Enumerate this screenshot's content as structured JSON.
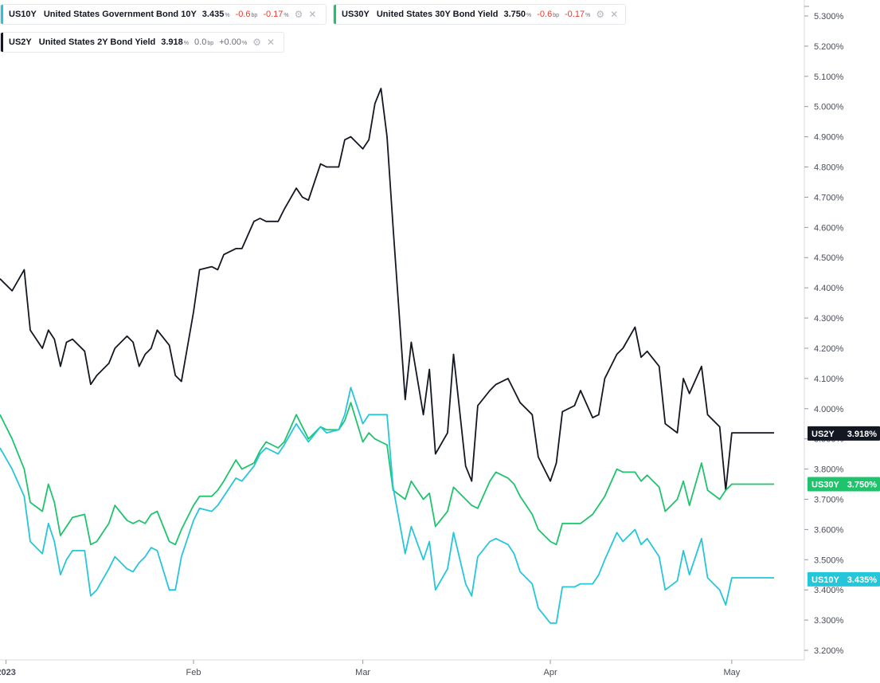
{
  "legends": [
    {
      "symbol": "US10Y",
      "name": "United States Government Bond 10Y",
      "value": "3.435",
      "unit": "%",
      "change": "-0.6",
      "change_unit": "bp",
      "pct": "-0.17",
      "pct_unit": "%",
      "color": "#26c6da"
    },
    {
      "symbol": "US30Y",
      "name": "United States 30Y Bond Yield",
      "value": "3.750",
      "unit": "%",
      "change": "-0.6",
      "change_unit": "bp",
      "pct": "-0.17",
      "pct_unit": "%",
      "color": "#1ec46c"
    },
    {
      "symbol": "US2Y",
      "name": "United States 2Y Bond Yield",
      "value": "3.918",
      "unit": "%",
      "change": "0.0",
      "change_unit": "bp",
      "pct": "+0.00",
      "pct_unit": "%",
      "color": "#131722"
    }
  ],
  "chart_data": {
    "type": "line",
    "x_labels": [
      {
        "label": "2023",
        "day": 0
      },
      {
        "label": "Feb",
        "day": 31
      },
      {
        "label": "Mar",
        "day": 59
      },
      {
        "label": "Apr",
        "day": 90
      },
      {
        "label": "May",
        "day": 120
      }
    ],
    "y_ticks": [
      "5.300%",
      "5.200%",
      "5.100%",
      "5.000%",
      "4.900%",
      "4.800%",
      "4.700%",
      "4.600%",
      "4.500%",
      "4.400%",
      "4.300%",
      "4.200%",
      "4.100%",
      "4.000%",
      "3.900%",
      "3.800%",
      "3.700%",
      "3.600%",
      "3.500%",
      "3.400%",
      "3.300%",
      "3.200%"
    ],
    "ylim": [
      3.18,
      5.34
    ],
    "xlim": [
      -1,
      132
    ],
    "series": [
      {
        "name": "US2Y",
        "color": "#131722",
        "last": "3.918%",
        "x": [
          -1,
          1,
          3,
          4,
          6,
          7,
          8,
          9,
          10,
          11,
          13,
          14,
          15,
          17,
          18,
          20,
          21,
          22,
          23,
          24,
          25,
          27,
          28,
          29,
          31,
          32,
          34,
          35,
          36,
          38,
          39,
          41,
          42,
          43,
          45,
          46,
          48,
          49,
          50,
          52,
          53,
          55,
          56,
          57,
          59,
          60,
          61,
          62,
          63,
          64,
          66,
          67,
          69,
          70,
          71,
          73,
          74,
          76,
          77,
          78,
          80,
          81,
          83,
          84,
          85,
          87,
          88,
          90,
          91,
          92,
          94,
          95,
          97,
          98,
          99,
          101,
          102,
          104,
          105,
          106,
          108,
          109,
          111,
          112,
          113,
          115,
          116,
          118,
          119,
          120,
          122,
          123,
          125,
          126,
          127,
          129
        ],
        "y": [
          4.43,
          4.39,
          4.46,
          4.26,
          4.2,
          4.26,
          4.23,
          4.14,
          4.22,
          4.23,
          4.19,
          4.08,
          4.11,
          4.15,
          4.2,
          4.24,
          4.22,
          4.14,
          4.18,
          4.2,
          4.26,
          4.21,
          4.11,
          4.09,
          4.32,
          4.46,
          4.47,
          4.46,
          4.51,
          4.53,
          4.53,
          4.62,
          4.63,
          4.62,
          4.62,
          4.66,
          4.73,
          4.7,
          4.69,
          4.81,
          4.8,
          4.8,
          4.89,
          4.9,
          4.86,
          4.89,
          5.01,
          5.06,
          4.9,
          4.6,
          4.03,
          4.22,
          3.98,
          4.13,
          3.85,
          3.92,
          4.18,
          3.81,
          3.76,
          4.01,
          4.06,
          4.08,
          4.1,
          4.06,
          4.02,
          3.98,
          3.84,
          3.76,
          3.82,
          3.99,
          4.01,
          4.06,
          3.97,
          3.98,
          4.1,
          4.18,
          4.2,
          4.27,
          4.17,
          4.19,
          4.14,
          3.95,
          3.92,
          4.1,
          4.05,
          4.14,
          3.98,
          3.94,
          3.73,
          3.92,
          3.92,
          3.92,
          3.92,
          3.92,
          3.92,
          3.92
        ]
      },
      {
        "name": "US30Y",
        "color": "#1ec46c",
        "last": "3.750%",
        "x": [
          -1,
          1,
          3,
          4,
          6,
          7,
          8,
          9,
          10,
          11,
          13,
          14,
          15,
          17,
          18,
          20,
          21,
          22,
          23,
          24,
          25,
          27,
          28,
          29,
          31,
          32,
          34,
          35,
          36,
          38,
          39,
          41,
          42,
          43,
          45,
          46,
          48,
          49,
          50,
          52,
          53,
          55,
          56,
          57,
          59,
          60,
          61,
          62,
          63,
          64,
          66,
          67,
          69,
          70,
          71,
          73,
          74,
          76,
          77,
          78,
          80,
          81,
          83,
          84,
          85,
          87,
          88,
          90,
          91,
          92,
          94,
          95,
          97,
          98,
          99,
          101,
          102,
          104,
          105,
          106,
          108,
          109,
          111,
          112,
          113,
          115,
          116,
          118,
          119,
          120,
          122,
          123,
          125,
          126,
          127,
          129
        ],
        "y": [
          3.98,
          3.9,
          3.8,
          3.69,
          3.66,
          3.75,
          3.69,
          3.58,
          3.61,
          3.64,
          3.65,
          3.55,
          3.56,
          3.62,
          3.68,
          3.63,
          3.62,
          3.63,
          3.62,
          3.65,
          3.66,
          3.56,
          3.55,
          3.6,
          3.68,
          3.71,
          3.71,
          3.73,
          3.76,
          3.83,
          3.8,
          3.82,
          3.86,
          3.89,
          3.87,
          3.89,
          3.98,
          3.94,
          3.9,
          3.94,
          3.93,
          3.93,
          3.96,
          4.02,
          3.89,
          3.92,
          3.9,
          3.89,
          3.88,
          3.73,
          3.7,
          3.76,
          3.7,
          3.72,
          3.61,
          3.66,
          3.74,
          3.7,
          3.68,
          3.67,
          3.76,
          3.79,
          3.77,
          3.75,
          3.71,
          3.65,
          3.6,
          3.56,
          3.55,
          3.62,
          3.62,
          3.62,
          3.65,
          3.68,
          3.71,
          3.8,
          3.79,
          3.79,
          3.76,
          3.78,
          3.74,
          3.66,
          3.7,
          3.76,
          3.68,
          3.82,
          3.73,
          3.7,
          3.73,
          3.75,
          3.75,
          3.75,
          3.75,
          3.75,
          3.75,
          3.75
        ]
      },
      {
        "name": "US10Y",
        "color": "#26c6da",
        "last": "3.435%",
        "x": [
          -1,
          1,
          3,
          4,
          6,
          7,
          8,
          9,
          10,
          11,
          13,
          14,
          15,
          17,
          18,
          20,
          21,
          22,
          23,
          24,
          25,
          27,
          28,
          29,
          31,
          32,
          34,
          35,
          36,
          38,
          39,
          41,
          42,
          43,
          45,
          46,
          48,
          49,
          50,
          52,
          53,
          55,
          56,
          57,
          59,
          60,
          61,
          62,
          63,
          64,
          66,
          67,
          69,
          70,
          71,
          73,
          74,
          76,
          77,
          78,
          80,
          81,
          83,
          84,
          85,
          87,
          88,
          90,
          91,
          92,
          94,
          95,
          97,
          98,
          99,
          101,
          102,
          104,
          105,
          106,
          108,
          109,
          111,
          112,
          113,
          115,
          116,
          118,
          119,
          120,
          122,
          123,
          125,
          126,
          127,
          129
        ],
        "y": [
          3.87,
          3.8,
          3.71,
          3.56,
          3.52,
          3.62,
          3.56,
          3.45,
          3.5,
          3.53,
          3.53,
          3.38,
          3.4,
          3.47,
          3.51,
          3.47,
          3.46,
          3.49,
          3.51,
          3.54,
          3.53,
          3.4,
          3.4,
          3.51,
          3.63,
          3.67,
          3.66,
          3.68,
          3.71,
          3.77,
          3.76,
          3.81,
          3.85,
          3.87,
          3.85,
          3.88,
          3.95,
          3.92,
          3.89,
          3.94,
          3.92,
          3.93,
          3.98,
          4.07,
          3.95,
          3.98,
          3.98,
          3.98,
          3.98,
          3.74,
          3.52,
          3.61,
          3.5,
          3.56,
          3.4,
          3.47,
          3.59,
          3.42,
          3.38,
          3.51,
          3.56,
          3.57,
          3.55,
          3.52,
          3.46,
          3.42,
          3.34,
          3.29,
          3.29,
          3.41,
          3.41,
          3.42,
          3.42,
          3.45,
          3.5,
          3.59,
          3.56,
          3.6,
          3.55,
          3.57,
          3.51,
          3.4,
          3.43,
          3.53,
          3.45,
          3.57,
          3.44,
          3.4,
          3.35,
          3.44,
          3.44,
          3.44,
          3.44,
          3.44,
          3.44,
          3.44
        ]
      }
    ]
  }
}
